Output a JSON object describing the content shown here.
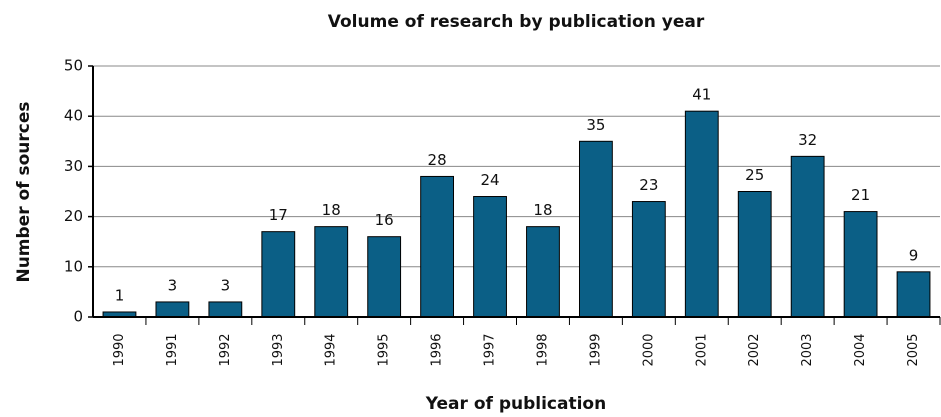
{
  "chart_data": {
    "type": "bar",
    "title": "Volume of research by publication year",
    "x_label": "Year of publication",
    "y_label": "Number of sources",
    "categories": [
      "1990",
      "1991",
      "1992",
      "1993",
      "1994",
      "1995",
      "1996",
      "1997",
      "1998",
      "1999",
      "2000",
      "2001",
      "2002",
      "2003",
      "2004",
      "2005"
    ],
    "values": [
      1,
      3,
      3,
      17,
      18,
      16,
      28,
      24,
      18,
      35,
      23,
      41,
      25,
      32,
      21,
      9
    ],
    "color": "#0b5f86",
    "ylim": [
      0,
      50
    ],
    "yticks": [
      0,
      10,
      20,
      30,
      40,
      50
    ],
    "grid": true
  }
}
